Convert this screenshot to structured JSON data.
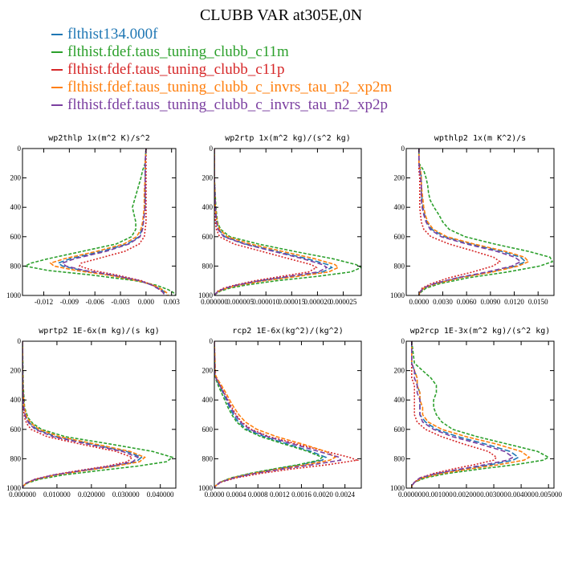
{
  "title": "CLUBB VAR at305E,0N",
  "legend": [
    {
      "label": "flthist134.000f",
      "color": "#1f77b4"
    },
    {
      "label": "flthist.fdef.taus_tuning_clubb_c11m",
      "color": "#2ca02c"
    },
    {
      "label": "flthist.fdef.taus_tuning_clubb_c11p",
      "color": "#d62728"
    },
    {
      "label": "flthist.fdef.taus_tuning_clubb_c_invrs_tau_n2_xp2m",
      "color": "#ff7f0e"
    },
    {
      "label": "flthist.fdef.taus_tuning_clubb_c_invrs_tau_n2_xp2p",
      "color": "#7b3fa0"
    }
  ],
  "chart_data": [
    {
      "type": "line",
      "title": "wp2thlp  1x(m^2 K)/s^2",
      "xlim": [
        -0.0145,
        0.0035
      ],
      "ylim": [
        0,
        1000
      ],
      "y_reversed": true,
      "xticks": [
        -0.012,
        -0.009,
        -0.006,
        -0.003,
        0.0,
        0.003
      ],
      "xtick_labels": [
        "-0.012",
        "-0.009",
        "-0.006",
        "-0.003",
        "0.000",
        "0.003"
      ],
      "yticks": [
        0,
        200,
        400,
        600,
        800,
        1000
      ],
      "y": [
        0,
        100,
        150,
        200,
        300,
        400,
        450,
        500,
        550,
        600,
        650,
        700,
        750,
        780,
        800,
        830,
        860,
        900,
        930,
        960,
        980,
        1000
      ],
      "series": [
        {
          "values": [
            0,
            -0.0001,
            -0.0001,
            -0.0001,
            -0.0001,
            -0.0001,
            -0.0002,
            -0.0003,
            -0.0005,
            -0.0008,
            -0.0022,
            -0.0052,
            -0.0089,
            -0.0103,
            -0.0098,
            -0.0075,
            -0.0042,
            -0.0008,
            0.0008,
            0.0018,
            0.0022,
            0.0024
          ]
        },
        {
          "values": [
            0,
            -0.0001,
            -0.0004,
            -0.0006,
            -0.0011,
            -0.0016,
            -0.0014,
            -0.0012,
            -0.0012,
            -0.0017,
            -0.0035,
            -0.0075,
            -0.0115,
            -0.0135,
            -0.0142,
            -0.0115,
            -0.0065,
            -0.0012,
            0.0012,
            0.0026,
            0.0032,
            0.0035
          ]
        },
        {
          "values": [
            0,
            0,
            0,
            0,
            0,
            0,
            0,
            0,
            -0.0001,
            -0.0002,
            -0.0008,
            -0.0025,
            -0.0057,
            -0.0076,
            -0.0078,
            -0.0062,
            -0.0035,
            -0.0005,
            0.0008,
            0.0016,
            0.002,
            0.0022
          ]
        },
        {
          "values": [
            0,
            -0.0001,
            -0.0001,
            -0.0001,
            -0.0002,
            -0.0002,
            -0.0003,
            -0.0004,
            -0.0006,
            -0.0011,
            -0.0026,
            -0.0058,
            -0.0096,
            -0.0112,
            -0.0108,
            -0.0082,
            -0.0046,
            -0.0009,
            0.0009,
            0.0019,
            0.0024,
            0.0026
          ]
        },
        {
          "values": [
            0,
            -0.0001,
            -0.0001,
            -0.0001,
            -0.0001,
            -0.0001,
            -0.0002,
            -0.0003,
            -0.0004,
            -0.0007,
            -0.002,
            -0.0047,
            -0.0084,
            -0.0098,
            -0.0094,
            -0.0072,
            -0.004,
            -0.0007,
            0.0007,
            0.0016,
            0.002,
            0.0022
          ]
        }
      ]
    },
    {
      "type": "line",
      "title": "wp2rtp  1x(m^2 kg)/(s^2 kg)",
      "xlim": [
        0,
        2.85e-05
      ],
      "ylim": [
        0,
        1000
      ],
      "y_reversed": true,
      "xticks": [
        0,
        5e-06,
        1e-05,
        1.5e-05,
        2e-05,
        2.5e-05
      ],
      "xtick_labels": [
        "0.000000",
        "0.000005",
        "0.000010",
        "0.000015",
        "0.000020",
        "0.000025"
      ],
      "yticks": [
        0,
        200,
        400,
        600,
        800,
        1000
      ],
      "y": [
        0,
        200,
        400,
        500,
        550,
        600,
        650,
        700,
        750,
        790,
        810,
        840,
        870,
        900,
        930,
        950,
        970,
        990,
        1000
      ],
      "series": [
        {
          "values": [
            0,
            0,
            2e-07,
            4e-07,
            8e-07,
            2e-06,
            6e-06,
            1.2e-05,
            1.8e-05,
            2.2e-05,
            2.28e-05,
            2.1e-05,
            1.5e-05,
            9e-06,
            4.5e-06,
            2.2e-06,
            8e-07,
            2e-07,
            0
          ]
        },
        {
          "values": [
            0,
            0,
            3e-07,
            6e-07,
            1.2e-06,
            3e-06,
            8.5e-06,
            1.55e-05,
            2.3e-05,
            2.75e-05,
            2.85e-05,
            2.65e-05,
            2e-05,
            1.2e-05,
            6e-06,
            3e-06,
            1.2e-06,
            3e-07,
            0
          ]
        },
        {
          "values": [
            0,
            0,
            1e-07,
            2e-07,
            4e-07,
            1e-06,
            3.8e-06,
            9.2e-06,
            1.45e-05,
            1.88e-05,
            1.98e-05,
            1.83e-05,
            1.3e-05,
            7.8e-06,
            3.9e-06,
            1.8e-06,
            7e-07,
            2e-07,
            0
          ]
        },
        {
          "values": [
            0,
            0,
            2e-07,
            5e-07,
            1e-06,
            2.5e-06,
            7e-06,
            1.32e-05,
            1.95e-05,
            2.34e-05,
            2.4e-05,
            2.22e-05,
            1.62e-05,
            9.7e-06,
            4.8e-06,
            2.4e-06,
            9e-07,
            2e-07,
            0
          ]
        },
        {
          "values": [
            0,
            0,
            2e-07,
            4e-07,
            7e-07,
            1.8e-06,
            5.8e-06,
            1.15e-05,
            1.72e-05,
            2.1e-05,
            2.18e-05,
            2.02e-05,
            1.45e-05,
            8.7e-06,
            4.3e-06,
            2.1e-06,
            8e-07,
            2e-07,
            0
          ]
        }
      ]
    },
    {
      "type": "line",
      "title": "wpthlp2  1x(m K^2)/s",
      "xlim": [
        -0.0016,
        0.017
      ],
      "ylim": [
        0,
        1000
      ],
      "y_reversed": true,
      "xticks": [
        0,
        0.003,
        0.006,
        0.009,
        0.012,
        0.015
      ],
      "xtick_labels": [
        "0.0000",
        "0.0030",
        "0.0060",
        "0.0090",
        "0.0120",
        "0.0150"
      ],
      "yticks": [
        0,
        200,
        400,
        600,
        800,
        1000
      ],
      "y": [
        0,
        100,
        150,
        200,
        250,
        300,
        350,
        400,
        450,
        500,
        550,
        600,
        650,
        700,
        740,
        770,
        800,
        840,
        880,
        920,
        950,
        980,
        1000
      ],
      "series": [
        {
          "values": [
            0,
            0,
            0.0002,
            0.0003,
            0.0003,
            0.0003,
            0.0004,
            0.0005,
            0.0007,
            0.001,
            0.0016,
            0.0032,
            0.0065,
            0.0104,
            0.0128,
            0.0134,
            0.0122,
            0.009,
            0.005,
            0.002,
            0.0006,
            0.0001,
            0
          ]
        },
        {
          "values": [
            0,
            0,
            0.0006,
            0.0009,
            0.0011,
            0.0012,
            0.0014,
            0.0019,
            0.0025,
            0.003,
            0.0038,
            0.0058,
            0.0095,
            0.0138,
            0.0165,
            0.0168,
            0.0152,
            0.0112,
            0.0062,
            0.0026,
            0.0009,
            0.0002,
            0
          ]
        },
        {
          "values": [
            0,
            0,
            0,
            0.0001,
            0.0001,
            0.0001,
            0.0001,
            0.0001,
            0.0002,
            0.0003,
            0.0006,
            0.0015,
            0.0038,
            0.007,
            0.0094,
            0.0102,
            0.0093,
            0.0068,
            0.0038,
            0.0015,
            0.0004,
            0.0001,
            0
          ]
        },
        {
          "values": [
            0,
            0,
            0.0002,
            0.0003,
            0.0003,
            0.0004,
            0.0005,
            0.0006,
            0.0008,
            0.0011,
            0.0018,
            0.0035,
            0.0069,
            0.0109,
            0.0133,
            0.0138,
            0.0125,
            0.0093,
            0.0052,
            0.0021,
            0.0006,
            0.0001,
            0
          ]
        },
        {
          "values": [
            0,
            0,
            0.0001,
            0.0002,
            0.0003,
            0.0003,
            0.0003,
            0.0004,
            0.0006,
            0.0009,
            0.0014,
            0.0028,
            0.006,
            0.0098,
            0.0121,
            0.0128,
            0.0117,
            0.0086,
            0.0048,
            0.0019,
            0.0005,
            0.0001,
            0
          ]
        }
      ]
    },
    {
      "type": "line",
      "title": "wprtp2  1E-6x(m kg)/(s kg)",
      "xlim": [
        0,
        0.0445
      ],
      "ylim": [
        0,
        1000
      ],
      "y_reversed": true,
      "xticks": [
        0,
        0.01,
        0.02,
        0.03,
        0.04
      ],
      "xtick_labels": [
        "0.000000",
        "0.010000",
        "0.020000",
        "0.030000",
        "0.040000"
      ],
      "yticks": [
        0,
        200,
        400,
        600,
        800,
        1000
      ],
      "y": [
        0,
        300,
        450,
        520,
        560,
        600,
        650,
        700,
        750,
        790,
        820,
        850,
        880,
        910,
        940,
        965,
        985,
        1000
      ],
      "series": [
        {
          "values": [
            0,
            0.0001,
            0.0004,
            0.0011,
            0.0022,
            0.0042,
            0.0098,
            0.02,
            0.0302,
            0.0345,
            0.033,
            0.0265,
            0.0178,
            0.0095,
            0.0038,
            0.0012,
            0.0002,
            0
          ]
        },
        {
          "values": [
            0,
            0.0002,
            0.0006,
            0.0016,
            0.003,
            0.0055,
            0.0125,
            0.0255,
            0.0378,
            0.0435,
            0.0418,
            0.0335,
            0.0225,
            0.012,
            0.0048,
            0.0015,
            0.0003,
            0
          ]
        },
        {
          "values": [
            0,
            0.0001,
            0.0002,
            0.0006,
            0.0012,
            0.0025,
            0.0072,
            0.0168,
            0.0272,
            0.0318,
            0.0305,
            0.0245,
            0.0165,
            0.0088,
            0.0035,
            0.0011,
            0.0002,
            0
          ]
        },
        {
          "values": [
            0,
            0.0001,
            0.0005,
            0.0013,
            0.0026,
            0.0048,
            0.0108,
            0.0212,
            0.0312,
            0.0355,
            0.034,
            0.0272,
            0.0183,
            0.0098,
            0.0039,
            0.0012,
            0.0002,
            0
          ]
        },
        {
          "values": [
            0,
            0.0001,
            0.0003,
            0.0009,
            0.0019,
            0.0037,
            0.009,
            0.0188,
            0.029,
            0.0335,
            0.032,
            0.0258,
            0.0173,
            0.0092,
            0.0037,
            0.0011,
            0.0002,
            0
          ]
        }
      ]
    },
    {
      "type": "line",
      "title": "rcp2  1E-6x(kg^2)/(kg^2)",
      "xlim": [
        0,
        0.0027
      ],
      "ylim": [
        0,
        1000
      ],
      "y_reversed": true,
      "xticks": [
        0,
        0.0004,
        0.0008,
        0.0012,
        0.0016,
        0.002,
        0.0024
      ],
      "xtick_labels": [
        "0.0000",
        "0.0004",
        "0.0008",
        "0.0012",
        "0.0016",
        "0.0020",
        "0.0024"
      ],
      "yticks": [
        0,
        200,
        400,
        600,
        800,
        1000
      ],
      "y": [
        0,
        230,
        260,
        300,
        350,
        400,
        450,
        500,
        550,
        600,
        650,
        700,
        750,
        790,
        810,
        840,
        870,
        900,
        930,
        960,
        985,
        1000
      ],
      "series": [
        {
          "values": [
            0,
            1e-05,
            4e-05,
            9e-05,
            0.00016,
            0.00022,
            0.00028,
            0.00035,
            0.00044,
            0.0006,
            0.00092,
            0.00135,
            0.00178,
            0.00205,
            0.00198,
            0.0016,
            0.00112,
            0.00068,
            0.00033,
            0.0001,
            2e-05,
            0
          ]
        },
        {
          "values": [
            0,
            1e-05,
            3e-05,
            7e-05,
            0.00013,
            0.00019,
            0.00025,
            0.00032,
            0.00041,
            0.00056,
            0.00086,
            0.00128,
            0.00172,
            0.00198,
            0.00192,
            0.00155,
            0.00108,
            0.00065,
            0.00031,
            0.0001,
            2e-05,
            0
          ]
        },
        {
          "values": [
            0,
            1e-05,
            5e-05,
            0.00011,
            0.00018,
            0.00025,
            0.00032,
            0.0004,
            0.0005,
            0.00068,
            0.00102,
            0.00152,
            0.00205,
            0.00248,
            0.00262,
            0.0021,
            0.00142,
            0.00085,
            0.0004,
            0.00012,
            2e-05,
            0
          ]
        },
        {
          "values": [
            0,
            2e-05,
            6e-05,
            0.00013,
            0.00021,
            0.00028,
            0.00036,
            0.00045,
            0.00057,
            0.00078,
            0.00115,
            0.00162,
            0.00205,
            0.00222,
            0.00212,
            0.0017,
            0.00118,
            0.00071,
            0.00034,
            0.0001,
            2e-05,
            0
          ]
        },
        {
          "values": [
            0,
            1e-05,
            4e-05,
            0.0001,
            0.00017,
            0.00024,
            0.0003,
            0.00038,
            0.00048,
            0.00065,
            0.00098,
            0.00145,
            0.00192,
            0.0023,
            0.00232,
            0.00182,
            0.00125,
            0.00075,
            0.00036,
            0.00011,
            2e-05,
            0
          ]
        }
      ]
    },
    {
      "type": "line",
      "title": "wp2rcp  1E-3x(m^2 kg)/(s^2 kg)",
      "xlim": [
        -0.0002,
        0.0052
      ],
      "ylim": [
        0,
        1000
      ],
      "y_reversed": true,
      "xticks": [
        0,
        0.001,
        0.002,
        0.003,
        0.004,
        0.005
      ],
      "xtick_labels": [
        "0.000000",
        "0.001000",
        "0.002000",
        "0.003000",
        "0.004000",
        "0.005000"
      ],
      "yticks": [
        0,
        200,
        400,
        600,
        800,
        1000
      ],
      "y": [
        0,
        150,
        200,
        250,
        300,
        350,
        400,
        450,
        500,
        550,
        600,
        650,
        700,
        750,
        790,
        810,
        840,
        870,
        900,
        930,
        960,
        985,
        1000
      ],
      "series": [
        {
          "values": [
            0,
            0,
            0.0001,
            0.0002,
            0.0002,
            0.0003,
            0.0003,
            0.0003,
            0.0003,
            0.0005,
            0.0009,
            0.0017,
            0.0027,
            0.0036,
            0.0039,
            0.0037,
            0.0029,
            0.0019,
            0.001,
            0.0004,
            0.0001,
            0,
            0
          ]
        },
        {
          "values": [
            0,
            0.0001,
            0.0004,
            0.0007,
            0.0009,
            0.0009,
            0.0008,
            0.0008,
            0.0009,
            0.0011,
            0.0015,
            0.0024,
            0.0035,
            0.0046,
            0.005,
            0.0048,
            0.0038,
            0.0025,
            0.0013,
            0.0005,
            0.0001,
            0,
            0
          ]
        },
        {
          "values": [
            0,
            0,
            0,
            0,
            0.0001,
            0.0001,
            0.0001,
            0.0001,
            0.0001,
            0.0002,
            0.0005,
            0.0011,
            0.0019,
            0.0028,
            0.0031,
            0.003,
            0.0023,
            0.0015,
            0.0008,
            0.0003,
            0.0001,
            0,
            0
          ]
        },
        {
          "values": [
            0,
            0,
            0.0001,
            0.0002,
            0.0002,
            0.0003,
            0.0003,
            0.0004,
            0.0004,
            0.0006,
            0.0011,
            0.002,
            0.0031,
            0.004,
            0.0043,
            0.0041,
            0.0032,
            0.0021,
            0.0011,
            0.0004,
            0.0001,
            0,
            0
          ]
        },
        {
          "values": [
            0,
            0,
            0.0001,
            0.0001,
            0.0002,
            0.0002,
            0.0003,
            0.0003,
            0.0003,
            0.0004,
            0.0008,
            0.0015,
            0.0025,
            0.0034,
            0.0037,
            0.0035,
            0.0027,
            0.0018,
            0.0009,
            0.0003,
            0.0001,
            0,
            0
          ]
        }
      ]
    }
  ]
}
